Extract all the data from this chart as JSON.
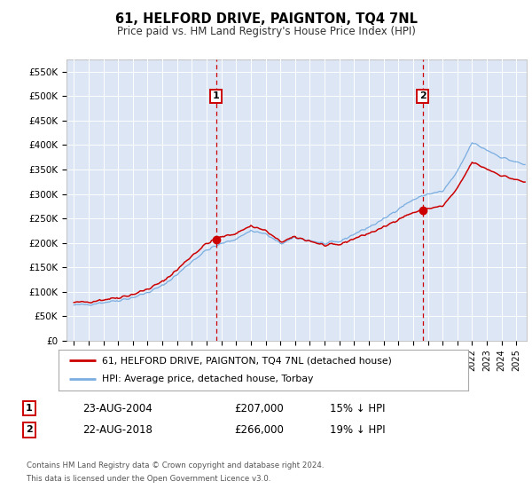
{
  "title": "61, HELFORD DRIVE, PAIGNTON, TQ4 7NL",
  "subtitle": "Price paid vs. HM Land Registry's House Price Index (HPI)",
  "footer1": "Contains HM Land Registry data © Crown copyright and database right 2024.",
  "footer2": "This data is licensed under the Open Government Licence v3.0.",
  "legend_line1": "61, HELFORD DRIVE, PAIGNTON, TQ4 7NL (detached house)",
  "legend_line2": "HPI: Average price, detached house, Torbay",
  "sale1_date": "23-AUG-2004",
  "sale1_price": "£207,000",
  "sale1_hpi": "15% ↓ HPI",
  "sale2_date": "22-AUG-2018",
  "sale2_price": "£266,000",
  "sale2_hpi": "19% ↓ HPI",
  "ylim": [
    0,
    575000
  ],
  "yticks": [
    0,
    50000,
    100000,
    150000,
    200000,
    250000,
    300000,
    350000,
    400000,
    450000,
    500000,
    550000
  ],
  "ytick_labels": [
    "£0",
    "£50K",
    "£100K",
    "£150K",
    "£200K",
    "£250K",
    "£300K",
    "£350K",
    "£400K",
    "£450K",
    "£500K",
    "£550K"
  ],
  "plot_bg_color": "#dce6f5",
  "red_color": "#cc0000",
  "blue_color": "#7aade0",
  "sale1_x": 2004.646,
  "sale2_x": 2018.646,
  "sale1_y": 207000,
  "sale2_y": 266000,
  "xlim_left": 1994.5,
  "xlim_right": 2025.7,
  "xtick_years": [
    1995,
    1996,
    1997,
    1998,
    1999,
    2000,
    2001,
    2002,
    2003,
    2004,
    2005,
    2006,
    2007,
    2008,
    2009,
    2010,
    2011,
    2012,
    2013,
    2014,
    2015,
    2016,
    2017,
    2018,
    2019,
    2020,
    2021,
    2022,
    2023,
    2024,
    2025
  ]
}
